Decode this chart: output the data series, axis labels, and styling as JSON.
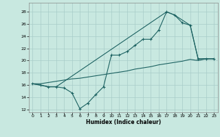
{
  "xlabel": "Humidex (Indice chaleur)",
  "xlim": [
    -0.5,
    23.5
  ],
  "ylim": [
    11.5,
    29.5
  ],
  "xticks": [
    0,
    1,
    2,
    3,
    4,
    5,
    6,
    7,
    8,
    9,
    10,
    11,
    12,
    13,
    14,
    15,
    16,
    17,
    18,
    19,
    20,
    21,
    22,
    23
  ],
  "yticks": [
    12,
    14,
    16,
    18,
    20,
    22,
    24,
    26,
    28
  ],
  "bg_color": "#c8e8e0",
  "grid_color": "#a8ccc8",
  "line_color": "#1a6060",
  "zigzag_x": [
    0,
    1,
    2,
    3,
    4,
    5,
    6,
    7,
    8,
    9,
    10,
    11,
    12,
    13,
    14,
    15,
    16,
    17,
    18,
    19,
    20,
    21,
    22,
    23
  ],
  "zigzag_y": [
    16.2,
    16.0,
    15.7,
    15.7,
    15.5,
    14.7,
    12.1,
    13.0,
    14.4,
    15.7,
    20.9,
    20.9,
    21.5,
    22.5,
    23.5,
    23.5,
    25.0,
    28.0,
    27.5,
    26.2,
    25.8,
    20.3,
    20.3,
    20.3
  ],
  "diag_x": [
    0,
    1,
    2,
    3,
    4,
    5,
    6,
    7,
    8,
    9,
    10,
    11,
    12,
    13,
    14,
    15,
    16,
    17,
    18,
    19,
    20,
    21,
    22,
    23
  ],
  "diag_y": [
    16.2,
    16.2,
    16.4,
    16.6,
    16.8,
    17.0,
    17.1,
    17.3,
    17.5,
    17.7,
    17.9,
    18.1,
    18.3,
    18.6,
    18.8,
    19.0,
    19.3,
    19.5,
    19.7,
    19.9,
    20.2,
    20.0,
    20.3,
    20.3
  ],
  "tri_x": [
    0,
    2,
    3,
    17,
    18,
    20,
    21,
    22,
    23
  ],
  "tri_y": [
    16.2,
    15.7,
    15.7,
    28.0,
    27.5,
    25.8,
    20.3,
    20.3,
    20.3
  ]
}
